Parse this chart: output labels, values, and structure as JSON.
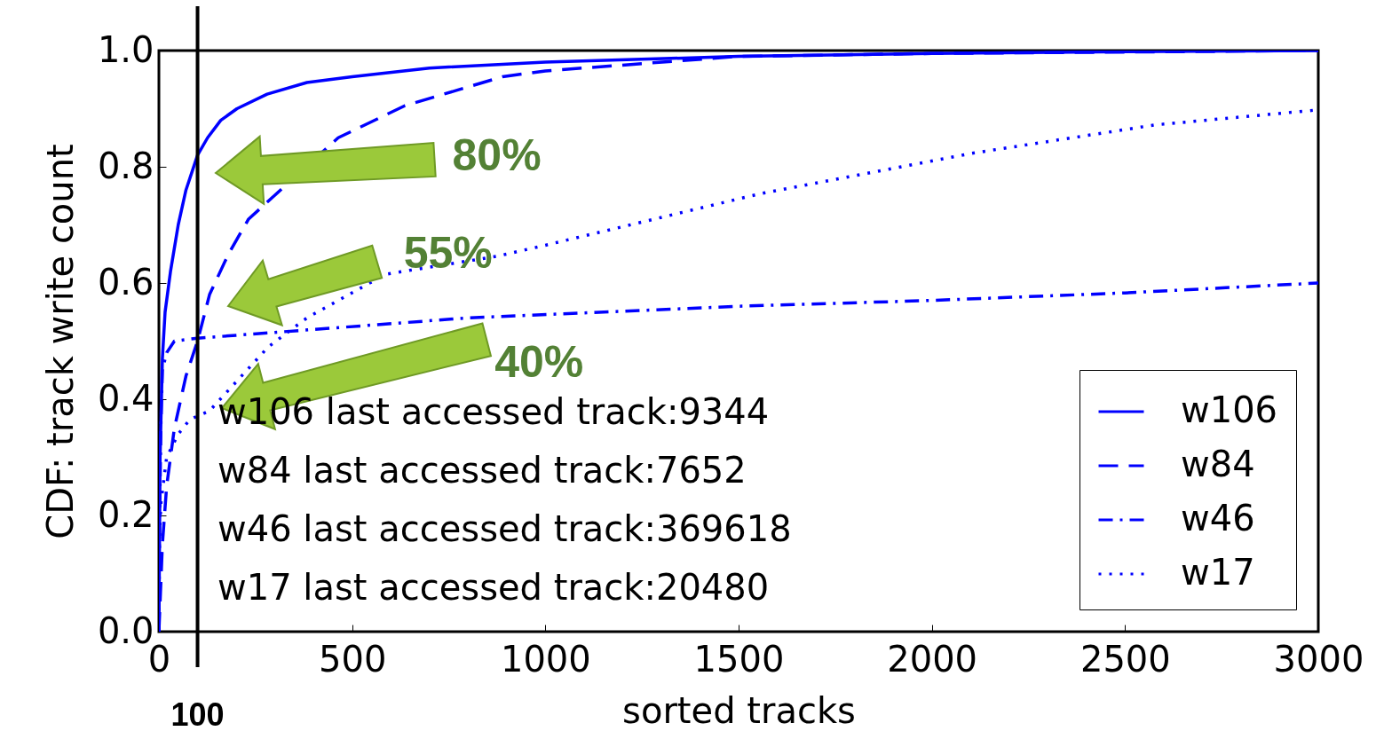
{
  "chart_data": {
    "type": "line",
    "xlabel": "sorted tracks",
    "ylabel": "CDF: track write count",
    "xlim": [
      0,
      3000
    ],
    "xticks": [
      0,
      500,
      1000,
      1500,
      2000,
      2500,
      3000
    ],
    "ylim": [
      0,
      1
    ],
    "yticks": [
      {
        "value": 0,
        "label": "0.0"
      },
      {
        "value": 0.2,
        "label": "0.2"
      },
      {
        "value": 0.4,
        "label": "0.4"
      },
      {
        "value": 0.6,
        "label": "0.6"
      },
      {
        "value": 0.8,
        "label": "0.8"
      },
      {
        "value": 1,
        "label": "1.0"
      }
    ],
    "grid": false,
    "legend": "bottom right",
    "series": [
      {
        "name": "w106",
        "color": "#0000ff",
        "line_style": "solid",
        "x": [
          0,
          3,
          9,
          16,
          30,
          50,
          70,
          100,
          126,
          160,
          202,
          280,
          383,
          500,
          700,
          1000,
          1500,
          2000,
          2500,
          3000
        ],
        "values": [
          0,
          0.3,
          0.47,
          0.55,
          0.62,
          0.7,
          0.76,
          0.82,
          0.85,
          0.88,
          0.9,
          0.925,
          0.945,
          0.955,
          0.97,
          0.98,
          0.99,
          0.995,
          0.998,
          1.0
        ]
      },
      {
        "name": "w84",
        "color": "#0000ff",
        "line_style": "dashed",
        "x": [
          0,
          9,
          20,
          40,
          70,
          100,
          131,
          180,
          232,
          464,
          636,
          889,
          1000,
          1500,
          2000,
          3000
        ],
        "values": [
          0,
          0.15,
          0.25,
          0.35,
          0.44,
          0.5,
          0.58,
          0.65,
          0.71,
          0.85,
          0.905,
          0.955,
          0.965,
          0.99,
          0.995,
          1.0
        ]
      },
      {
        "name": "w46",
        "color": "#0000ff",
        "line_style": "dashdot",
        "x": [
          0,
          2,
          5,
          9,
          20,
          40,
          100,
          200,
          400,
          800,
          1500,
          2000,
          2500,
          3000
        ],
        "values": [
          0,
          0.2,
          0.35,
          0.45,
          0.48,
          0.5,
          0.505,
          0.51,
          0.52,
          0.54,
          0.56,
          0.57,
          0.583,
          0.6
        ]
      },
      {
        "name": "w17",
        "color": "#0000ff",
        "line_style": "dotted",
        "x": [
          0,
          1,
          5,
          20,
          50,
          80,
          131,
          283,
          383,
          586,
          875,
          1000,
          1558,
          2102,
          2577,
          3000
        ],
        "values": [
          0,
          0.15,
          0.22,
          0.3,
          0.34,
          0.365,
          0.38,
          0.49,
          0.54,
          0.615,
          0.646,
          0.665,
          0.754,
          0.823,
          0.872,
          0.898
        ]
      }
    ],
    "ref_lines": [
      {
        "axis": "x",
        "value": 100,
        "label": "100",
        "color": "#000000"
      }
    ],
    "annotations": [
      "80%",
      "55%",
      "40%",
      "w106 last accessed track:9344",
      "w84 last accessed track:7652",
      "w46 last accessed track:369618",
      "w17 last accessed track:20480"
    ]
  }
}
